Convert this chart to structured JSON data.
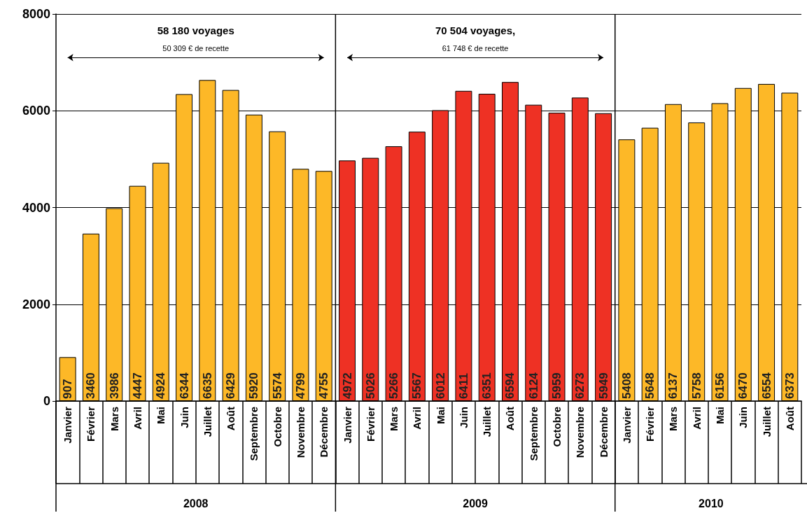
{
  "chart_data": {
    "type": "bar",
    "categories": [
      "Janvier",
      "Février",
      "Mars",
      "Avril",
      "Mai",
      "Juin",
      "Juillet",
      "Août",
      "Septembre",
      "Octobre",
      "Novembre",
      "Décembre",
      "Janvier",
      "Février",
      "Mars",
      "Avril",
      "Mai",
      "Juin",
      "Juillet",
      "Août",
      "Septembre",
      "Octobre",
      "Novembre",
      "Décembre",
      "Janvier",
      "Février",
      "Mars",
      "Avril",
      "Mai",
      "Juin",
      "Juillet",
      "Août"
    ],
    "values": [
      907,
      3460,
      3986,
      4447,
      4924,
      6344,
      6635,
      6429,
      5920,
      5574,
      4799,
      4755,
      4972,
      5026,
      5266,
      5567,
      6012,
      6411,
      6351,
      6594,
      6124,
      5959,
      6273,
      5949,
      5408,
      5648,
      6137,
      5758,
      6156,
      6470,
      6554,
      6373
    ],
    "colors": [
      "#fdb827",
      "#fdb827",
      "#fdb827",
      "#fdb827",
      "#fdb827",
      "#fdb827",
      "#fdb827",
      "#fdb827",
      "#fdb827",
      "#fdb827",
      "#fdb827",
      "#fdb827",
      "#ee3124",
      "#ee3124",
      "#ee3124",
      "#ee3124",
      "#ee3124",
      "#ee3124",
      "#ee3124",
      "#ee3124",
      "#ee3124",
      "#ee3124",
      "#ee3124",
      "#ee3124",
      "#fdb827",
      "#fdb827",
      "#fdb827",
      "#fdb827",
      "#fdb827",
      "#fdb827",
      "#fdb827",
      "#fdb827"
    ],
    "data_labels": true,
    "ylim": [
      0,
      8000
    ],
    "yticks": [
      0,
      2000,
      4000,
      6000,
      8000
    ],
    "grid": "y",
    "annotations": [
      "58 180 voyages",
      "50 309 € de recette",
      "70 504 voyages,",
      "61 748 € de recette",
      "2008",
      "2009",
      "2010"
    ]
  }
}
